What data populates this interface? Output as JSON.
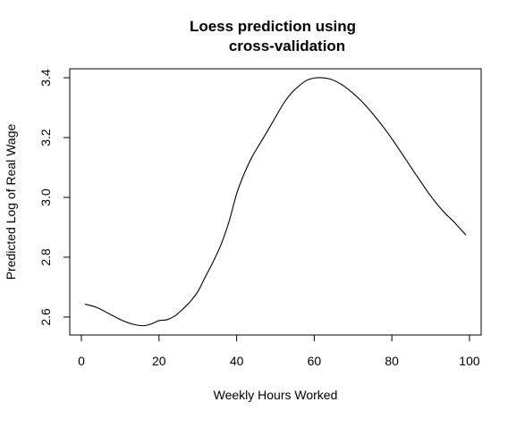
{
  "chart_data": {
    "type": "line",
    "title_lines": [
      "Loess prediction using",
      "cross-validation"
    ],
    "xlabel": "Weekly Hours Worked",
    "ylabel": "Predicted Log of Real Wage",
    "xlim": [
      -3,
      103
    ],
    "ylim": [
      2.54,
      3.43
    ],
    "x_ticks": [
      0,
      20,
      40,
      60,
      80,
      100
    ],
    "x_tick_labels": [
      "0",
      "20",
      "40",
      "60",
      "80",
      "100"
    ],
    "y_ticks": [
      2.6,
      2.8,
      3.0,
      3.2,
      3.4
    ],
    "y_tick_labels": [
      "2.6",
      "2.8",
      "3.0",
      "3.2",
      "3.4"
    ],
    "grid": false,
    "legend": "none",
    "series": [
      {
        "color": "#000000",
        "x": [
          1,
          4,
          7,
          10,
          13,
          16,
          18,
          20,
          22,
          24,
          26,
          28,
          30,
          32,
          34,
          36,
          38,
          40,
          42,
          44,
          46,
          48,
          50,
          52,
          54,
          56,
          58,
          60,
          62,
          64,
          66,
          68,
          70,
          72,
          74,
          76,
          78,
          80,
          82,
          84,
          86,
          88,
          90,
          92,
          94,
          96,
          99
        ],
        "y": [
          2.643,
          2.632,
          2.612,
          2.592,
          2.577,
          2.571,
          2.577,
          2.588,
          2.591,
          2.603,
          2.625,
          2.651,
          2.685,
          2.736,
          2.786,
          2.843,
          2.917,
          3.012,
          3.081,
          3.136,
          3.18,
          3.223,
          3.268,
          3.312,
          3.347,
          3.372,
          3.391,
          3.399,
          3.4,
          3.396,
          3.385,
          3.369,
          3.348,
          3.324,
          3.296,
          3.265,
          3.232,
          3.196,
          3.158,
          3.119,
          3.08,
          3.042,
          3.005,
          2.972,
          2.943,
          2.918,
          2.875
        ]
      }
    ]
  }
}
